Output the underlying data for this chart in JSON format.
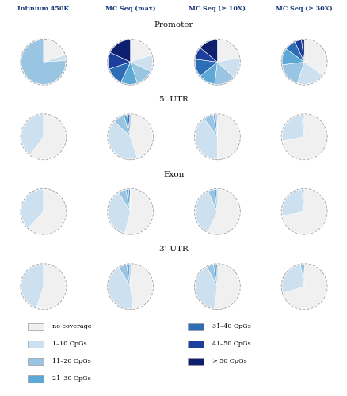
{
  "colors": {
    "no_coverage": "#f0f0f0",
    "1_10": "#cde0f0",
    "11_20": "#99c4e2",
    "21_30": "#5da8d4",
    "31_40": "#2c6db5",
    "41_50": "#1c3f9e",
    "gt50": "#0d1f6e"
  },
  "header_labels": [
    "Infinium 450K",
    "MC Seq (max)",
    "MC Seq (≥ 10X)",
    "MC Seq (≥ 30X)"
  ],
  "row_labels": [
    "Promoter",
    "5’ UTR",
    "Exon",
    "3’ UTR"
  ],
  "pies": {
    "Promoter": {
      "col0": [
        0.2,
        0.04,
        0.76,
        0.0,
        0.0,
        0.0,
        0.0
      ],
      "col1": [
        0.2,
        0.12,
        0.13,
        0.12,
        0.13,
        0.12,
        0.18
      ],
      "col2": [
        0.22,
        0.15,
        0.15,
        0.12,
        0.13,
        0.09,
        0.14
      ],
      "col3": [
        0.35,
        0.2,
        0.18,
        0.12,
        0.08,
        0.05,
        0.02
      ]
    },
    "5UTR": {
      "col0": [
        0.6,
        0.4,
        0.0,
        0.0,
        0.0,
        0.0,
        0.0
      ],
      "col1": [
        0.45,
        0.42,
        0.08,
        0.025,
        0.015,
        0.008,
        0.002
      ],
      "col2": [
        0.5,
        0.4,
        0.07,
        0.02,
        0.007,
        0.003,
        0.0
      ],
      "col3": [
        0.72,
        0.26,
        0.015,
        0.005,
        0.0,
        0.0,
        0.0
      ]
    },
    "Exon": {
      "col0": [
        0.62,
        0.38,
        0.0,
        0.0,
        0.0,
        0.0,
        0.0
      ],
      "col1": [
        0.54,
        0.37,
        0.055,
        0.02,
        0.01,
        0.003,
        0.002
      ],
      "col2": [
        0.57,
        0.36,
        0.05,
        0.015,
        0.005,
        0.0,
        0.0
      ],
      "col3": [
        0.72,
        0.26,
        0.015,
        0.005,
        0.0,
        0.0,
        0.0
      ]
    },
    "3UTR": {
      "col0": [
        0.55,
        0.45,
        0.0,
        0.0,
        0.0,
        0.0,
        0.0
      ],
      "col1": [
        0.48,
        0.43,
        0.06,
        0.02,
        0.008,
        0.002,
        0.0
      ],
      "col2": [
        0.52,
        0.4,
        0.05,
        0.02,
        0.008,
        0.002,
        0.0
      ],
      "col3": [
        0.7,
        0.27,
        0.02,
        0.008,
        0.002,
        0.0,
        0.0
      ]
    }
  },
  "background_color": "#ffffff"
}
